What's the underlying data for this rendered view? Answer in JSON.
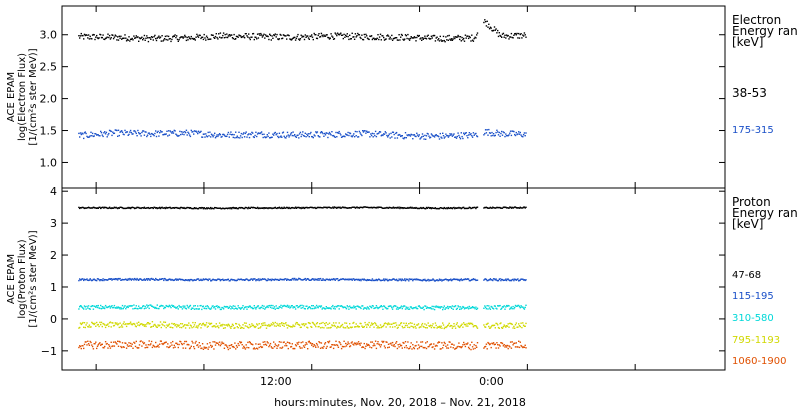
{
  "chart_data": [
    {
      "type": "scatter",
      "ylabel_lines": [
        "ACE EPAM",
        "log(Electron Flux)",
        "[1/(cm²s ster MeV)]"
      ],
      "ylim": [
        0.6,
        3.45
      ],
      "yticks": [
        1.0,
        1.5,
        2.0,
        2.5,
        3.0
      ],
      "ytick_labels": [
        "1.0",
        "1.5",
        "2.0",
        "2.5",
        "3.0"
      ],
      "legend_title_lines": [
        "Electron",
        "Energy ran",
        "[keV]"
      ],
      "data_gap": [
        15.2,
        15.5
      ],
      "series": [
        {
          "name": "38-53",
          "color": "#000000",
          "base": 2.98,
          "noise": 0.05,
          "x": [
            -7.0,
            -5.0,
            -3.0,
            -1.0,
            1.0,
            3.0,
            5.0,
            7.0,
            9.0,
            11.0,
            13.0,
            15.0,
            15.6,
            16.5,
            17.9
          ],
          "y": [
            2.98,
            2.97,
            2.95,
            2.96,
            2.99,
            2.98,
            2.97,
            2.99,
            2.98,
            2.97,
            2.95,
            2.96,
            3.22,
            2.99,
            3.0
          ]
        },
        {
          "name": "175-315",
          "color": "#1a50c8",
          "base": 1.45,
          "noise": 0.05,
          "x": [
            -7.0,
            -5.0,
            -3.0,
            -1.0,
            1.0,
            3.0,
            5.0,
            7.0,
            9.0,
            11.0,
            13.0,
            15.0,
            15.6,
            16.5,
            17.9
          ],
          "y": [
            1.43,
            1.47,
            1.46,
            1.47,
            1.44,
            1.45,
            1.44,
            1.45,
            1.46,
            1.43,
            1.42,
            1.44,
            1.49,
            1.46,
            1.45
          ]
        }
      ]
    },
    {
      "type": "scatter",
      "xlabel": "hours:minutes, Nov. 20, 2018 – Nov. 21, 2018",
      "xlim": [
        -7.9,
        29.0
      ],
      "xticks": [
        -6,
        0,
        6,
        12,
        18,
        24
      ],
      "xtick_label_values": [
        12
      ],
      "xtick_labels": [
        "12:00",
        "0:00"
      ],
      "xtick_label_positions": [
        4.0,
        16.0
      ],
      "ylabel_lines": [
        "ACE EPAM",
        "log(Proton Flux)",
        "[1/(cm²s ster MeV)]"
      ],
      "ylim": [
        -1.6,
        4.1
      ],
      "yticks": [
        -1,
        0,
        1,
        2,
        3,
        4
      ],
      "ytick_labels": [
        "−1",
        "0",
        "1",
        "2",
        "3",
        "4"
      ],
      "legend_title_lines": [
        "Proton",
        "Energy ran",
        "[keV]"
      ],
      "data_gap": [
        15.2,
        15.5
      ],
      "series": [
        {
          "name": "47-68",
          "color": "#000000",
          "base": 3.5,
          "noise": 0.02,
          "x": [
            -7.0,
            -3.0,
            1.0,
            5.0,
            9.0,
            13.0,
            15.0,
            16.0,
            17.9
          ],
          "y": [
            3.5,
            3.5,
            3.49,
            3.5,
            3.51,
            3.49,
            3.5,
            3.5,
            3.51
          ]
        },
        {
          "name": "115-195",
          "color": "#1a50c8",
          "base": 1.25,
          "noise": 0.03,
          "x": [
            -7.0,
            -3.0,
            1.0,
            5.0,
            9.0,
            13.0,
            15.0,
            16.0,
            17.9
          ],
          "y": [
            1.25,
            1.26,
            1.24,
            1.26,
            1.25,
            1.24,
            1.25,
            1.25,
            1.24
          ]
        },
        {
          "name": "310-580",
          "color": "#00d8d8",
          "base": 0.38,
          "noise": 0.06,
          "x": [
            -7.0,
            -3.0,
            1.0,
            5.0,
            9.0,
            13.0,
            15.0,
            16.0,
            17.9
          ],
          "y": [
            0.38,
            0.4,
            0.37,
            0.39,
            0.38,
            0.37,
            0.38,
            0.38,
            0.39
          ]
        },
        {
          "name": "795-1193",
          "color": "#d0d800",
          "base": -0.18,
          "noise": 0.09,
          "x": [
            -7.0,
            -3.0,
            1.0,
            5.0,
            9.0,
            13.0,
            15.0,
            16.0,
            17.9
          ],
          "y": [
            -0.18,
            -0.15,
            -0.2,
            -0.17,
            -0.18,
            -0.19,
            -0.18,
            -0.2,
            -0.18
          ]
        },
        {
          "name": "1060-1900",
          "color": "#e05000",
          "base": -0.8,
          "noise": 0.12,
          "x": [
            -7.0,
            -3.0,
            1.0,
            5.0,
            9.0,
            13.0,
            15.0,
            16.0,
            17.9
          ],
          "y": [
            -0.8,
            -0.78,
            -0.82,
            -0.8,
            -0.79,
            -0.81,
            -0.82,
            -0.8,
            -0.78
          ]
        }
      ]
    }
  ]
}
